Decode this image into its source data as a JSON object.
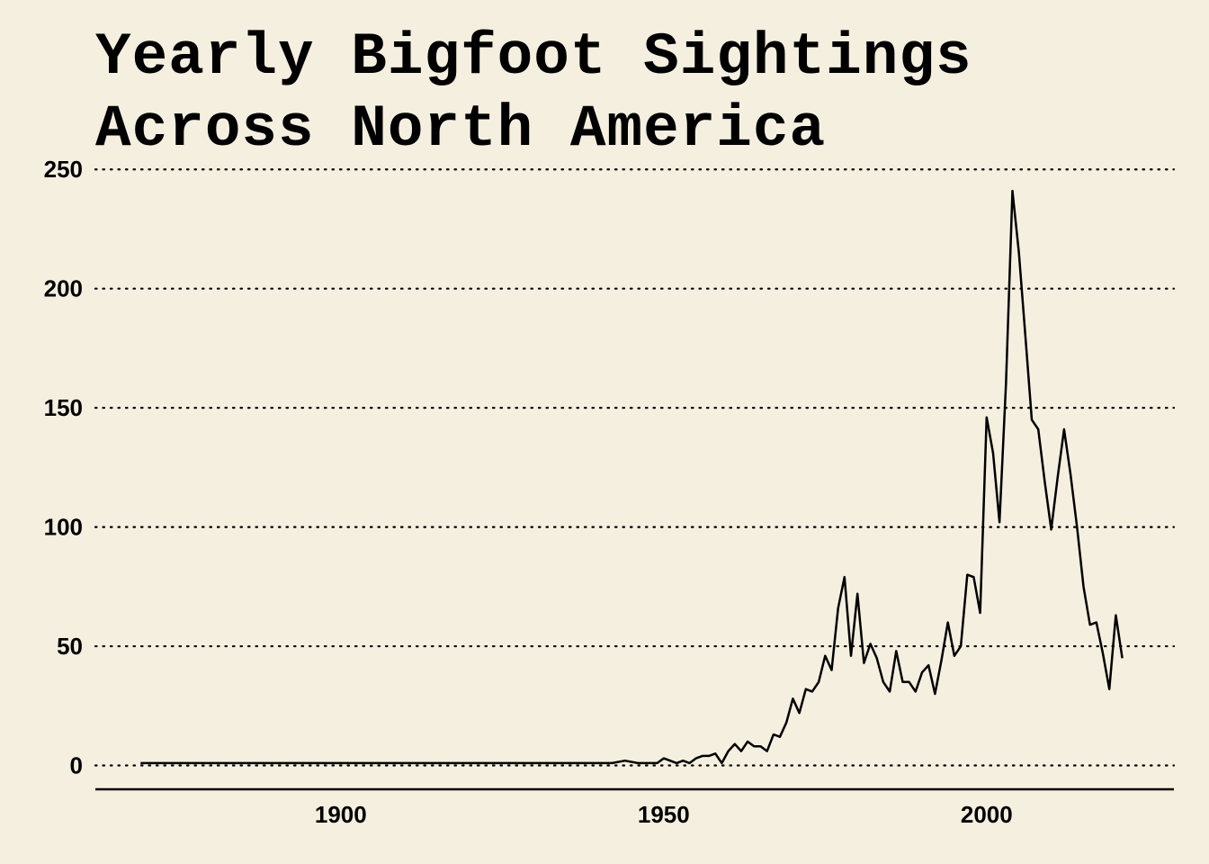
{
  "chart_data": {
    "type": "line",
    "title": "Yearly Bigfoot Sightings Across North America",
    "xlabel": "",
    "ylabel": "",
    "xlim": [
      1862,
      2029
    ],
    "ylim": [
      -10,
      255
    ],
    "x_ticks": [
      1900,
      1950,
      2000
    ],
    "y_ticks": [
      0,
      50,
      100,
      150,
      200,
      250
    ],
    "grid": "horizontal dotted",
    "legend": "none",
    "colors": {
      "background": "#f5efe0",
      "line": "#000000",
      "grid": "#000000",
      "axis": "#000000"
    },
    "series": [
      {
        "x": [
          1869,
          1942,
          1944,
          1946,
          1948,
          1949,
          1950,
          1951,
          1952,
          1953,
          1954,
          1955,
          1956,
          1957,
          1958,
          1959,
          1960,
          1961,
          1962,
          1963,
          1964,
          1965,
          1966,
          1967,
          1968,
          1969,
          1970,
          1971,
          1972,
          1973,
          1974,
          1975,
          1976,
          1977,
          1978,
          1979,
          1980,
          1981,
          1982,
          1983,
          1984,
          1985,
          1986,
          1987,
          1988,
          1989,
          1990,
          1991,
          1992,
          1993,
          1994,
          1995,
          1996,
          1997,
          1998,
          1999,
          2000,
          2001,
          2002,
          2003,
          2004,
          2005,
          2006,
          2007,
          2008,
          2009,
          2010,
          2011,
          2012,
          2013,
          2014,
          2015,
          2016,
          2017,
          2018,
          2019,
          2020,
          2021
        ],
        "y": [
          1,
          1,
          2,
          1,
          1,
          1,
          3,
          2,
          1,
          2,
          1,
          3,
          4,
          4,
          5,
          1,
          6,
          9,
          6,
          10,
          8,
          8,
          6,
          13,
          12,
          18,
          28,
          22,
          32,
          31,
          35,
          46,
          40,
          66,
          79,
          46,
          72,
          43,
          51,
          45,
          35,
          31,
          48,
          35,
          35,
          31,
          39,
          42,
          30,
          44,
          60,
          46,
          50,
          80,
          79,
          64,
          146,
          131,
          102,
          160,
          241,
          215,
          180,
          145,
          141,
          119,
          99,
          121,
          141,
          122,
          100,
          75,
          59,
          60,
          47,
          32,
          63,
          45
        ]
      }
    ]
  }
}
